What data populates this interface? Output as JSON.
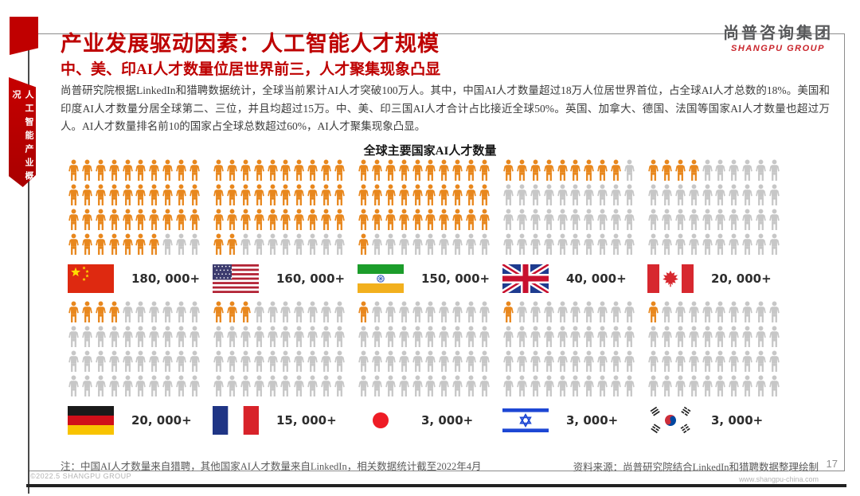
{
  "page": {
    "logo": {
      "cn": "尚普咨询集团",
      "en": "SHANGPU GROUP"
    },
    "sidebar_label": "人工智能产业概况",
    "title": "产业发展驱动因素：人工智能人才规模",
    "subtitle": "中、美、印AI人才数量位居世界前三，人才聚集现象凸显",
    "body": "尚普研究院根据LinkedIn和猎聘数据统计，全球当前累计AI人才突破100万人。其中，中国AI人才数量超过18万人位居世界首位，占全球AI人才总数的18%。美国和印度AI人才数量分居全球第二、三位，并且均超过15万。中、美、印三国AI人才合计占比接近全球50%。英国、加拿大、德国、法国等国家AI人才数量也超过万人。AI人才数量排名前10的国家占全球总数超过60%，AI人才聚集现象凸显。",
    "footer_note": "注：中国AI人才数量来自猎聘，其他国家AI人才数量来自LinkedIn，相关数据统计截至2022年4月",
    "source": "资料来源：尚普研究院结合LinkedIn和猎聘数据整理绘制",
    "page_number": "17",
    "copyright": "©2022.5  SHANGPU GROUP",
    "website": "www.shangpu-china.com"
  },
  "chart_data": {
    "type": "pictograph",
    "title": "全球主要国家AI人才数量",
    "layout": {
      "blocks_per_row": 5,
      "icon_columns": 10,
      "icon_rows": 4,
      "total_icons_per_country": 40
    },
    "colors": {
      "filled": "#E8871D",
      "empty": "#C7C7C7"
    },
    "countries": [
      {
        "id": "china",
        "name": "China",
        "label": "180, 000+",
        "value": 180000,
        "filled_icons": 37
      },
      {
        "id": "usa",
        "name": "United States",
        "label": "160, 000+",
        "value": 160000,
        "filled_icons": 32
      },
      {
        "id": "india",
        "name": "India",
        "label": "150, 000+",
        "value": 150000,
        "filled_icons": 31
      },
      {
        "id": "uk",
        "name": "United Kingdom",
        "label": "40, 000+",
        "value": 40000,
        "filled_icons": 9
      },
      {
        "id": "canada",
        "name": "Canada",
        "label": "20, 000+",
        "value": 20000,
        "filled_icons": 4
      },
      {
        "id": "germany",
        "name": "Germany",
        "label": "20, 000+",
        "value": 20000,
        "filled_icons": 4
      },
      {
        "id": "france",
        "name": "France",
        "label": "15, 000+",
        "value": 15000,
        "filled_icons": 3
      },
      {
        "id": "japan",
        "name": "Japan",
        "label": "3, 000+",
        "value": 3000,
        "filled_icons": 1
      },
      {
        "id": "israel",
        "name": "Israel",
        "label": "3, 000+",
        "value": 3000,
        "filled_icons": 1
      },
      {
        "id": "south-korea",
        "name": "South Korea",
        "label": "3, 000+",
        "value": 3000,
        "filled_icons": 1
      }
    ]
  }
}
